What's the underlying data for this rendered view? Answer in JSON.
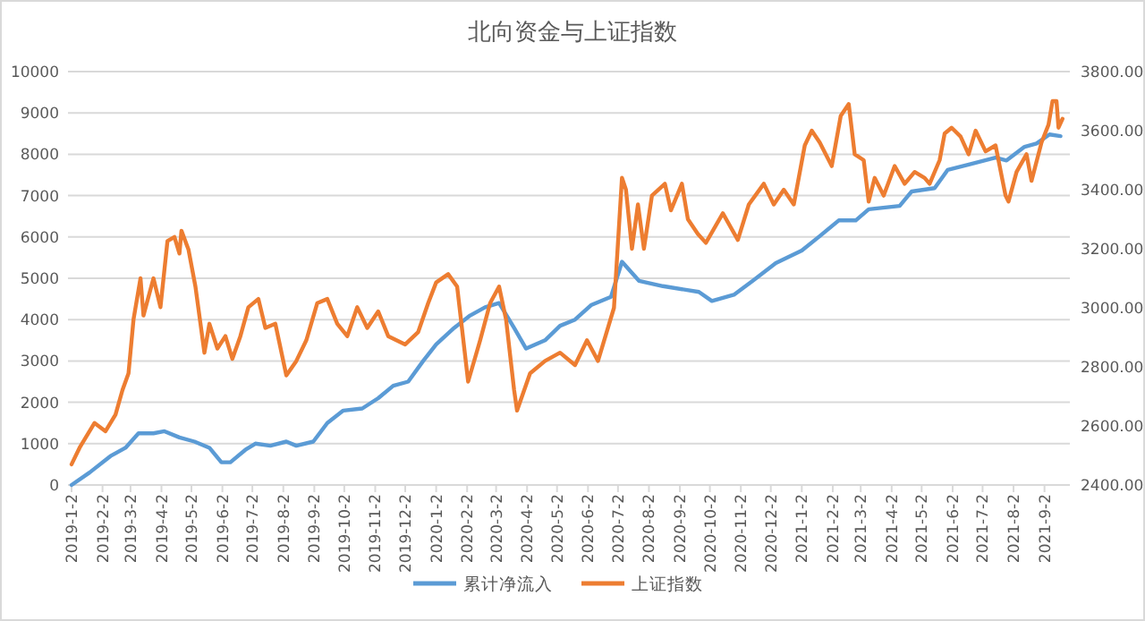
{
  "chart_data": {
    "type": "line",
    "title": "北向资金与上证指数",
    "x": [
      "2019-01-02",
      "2019-01-20",
      "2019-02-10",
      "2019-02-25",
      "2019-03-10",
      "2019-03-25",
      "2019-04-05",
      "2019-04-20",
      "2019-05-05",
      "2019-05-20",
      "2019-06-01",
      "2019-06-10",
      "2019-06-25",
      "2019-07-05",
      "2019-07-20",
      "2019-08-05",
      "2019-08-15",
      "2019-09-01",
      "2019-09-15",
      "2019-10-01",
      "2019-10-20",
      "2019-11-05",
      "2019-11-20",
      "2019-12-05",
      "2019-12-20",
      "2020-01-02",
      "2020-01-20",
      "2020-02-05",
      "2020-02-20",
      "2020-03-05",
      "2020-03-20",
      "2020-04-01",
      "2020-04-20",
      "2020-05-05",
      "2020-05-20",
      "2020-06-05",
      "2020-06-25",
      "2020-07-06",
      "2020-07-23",
      "2020-08-16",
      "2020-09-21",
      "2020-10-04",
      "2020-10-26",
      "2020-11-14",
      "2020-12-07",
      "2021-01-02",
      "2021-01-20",
      "2021-02-08",
      "2021-02-25",
      "2021-03-10",
      "2021-04-10",
      "2021-04-22",
      "2021-05-15",
      "2021-05-28",
      "2021-06-20",
      "2021-07-15",
      "2021-07-26",
      "2021-08-13",
      "2021-08-25",
      "2021-09-07",
      "2021-09-18"
    ],
    "series": [
      {
        "name": "累计净流入",
        "color": "#5b9bd5",
        "values": [
          0,
          300,
          700,
          900,
          1250,
          1250,
          1300,
          1150,
          1050,
          900,
          550,
          550,
          850,
          1000,
          950,
          1050,
          950,
          1050,
          1500,
          1800,
          1850,
          2100,
          2400,
          2500,
          3000,
          3400,
          3800,
          4100,
          4300,
          4400,
          3800,
          3300,
          3500,
          3850,
          4000,
          4350,
          4550,
          5400,
          4940,
          4810,
          4670,
          4450,
          4600,
          4940,
          5370,
          5670,
          6020,
          6400,
          6400,
          6670,
          6750,
          7100,
          7180,
          7620,
          7760,
          7920,
          7850,
          8180,
          8260,
          8480,
          8440
        ]
      },
      {
        "name": "上证指数",
        "color": "#ed7d31",
        "axis": "y2",
        "x": [
          "2019-01-02",
          "2019-01-10",
          "2019-01-25",
          "2019-02-05",
          "2019-02-15",
          "2019-02-22",
          "2019-02-28",
          "2019-03-05",
          "2019-03-12",
          "2019-03-15",
          "2019-03-25",
          "2019-04-01",
          "2019-04-08",
          "2019-04-15",
          "2019-04-20",
          "2019-04-22",
          "2019-04-29",
          "2019-05-06",
          "2019-05-15",
          "2019-05-20",
          "2019-05-28",
          "2019-06-05",
          "2019-06-12",
          "2019-06-20",
          "2019-06-28",
          "2019-07-08",
          "2019-07-15",
          "2019-07-25",
          "2019-08-05",
          "2019-08-15",
          "2019-08-25",
          "2019-09-05",
          "2019-09-15",
          "2019-09-25",
          "2019-10-05",
          "2019-10-15",
          "2019-10-25",
          "2019-11-05",
          "2019-11-15",
          "2019-12-02",
          "2019-12-15",
          "2019-12-25",
          "2020-01-02",
          "2020-01-14",
          "2020-01-23",
          "2020-02-03",
          "2020-02-15",
          "2020-02-25",
          "2020-03-05",
          "2020-03-12",
          "2020-03-20",
          "2020-03-23",
          "2020-04-05",
          "2020-04-20",
          "2020-05-05",
          "2020-05-20",
          "2020-06-01",
          "2020-06-12",
          "2020-06-28",
          "2020-07-06",
          "2020-07-10",
          "2020-07-16",
          "2020-07-22",
          "2020-07-28",
          "2020-08-05",
          "2020-08-18",
          "2020-08-24",
          "2020-09-04",
          "2020-09-10",
          "2020-09-20",
          "2020-09-28",
          "2020-10-15",
          "2020-10-30",
          "2020-11-10",
          "2020-11-25",
          "2020-12-05",
          "2020-12-15",
          "2020-12-25",
          "2021-01-05",
          "2021-01-12",
          "2021-01-20",
          "2021-02-01",
          "2021-02-10",
          "2021-02-18",
          "2021-02-24",
          "2021-03-05",
          "2021-03-10",
          "2021-03-16",
          "2021-03-25",
          "2021-04-05",
          "2021-04-15",
          "2021-04-25",
          "2021-05-05",
          "2021-05-10",
          "2021-05-20",
          "2021-05-25",
          "2021-06-01",
          "2021-06-10",
          "2021-06-18",
          "2021-06-25",
          "2021-07-05",
          "2021-07-15",
          "2021-07-25",
          "2021-07-28",
          "2021-08-05",
          "2021-08-15",
          "2021-08-20",
          "2021-08-30",
          "2021-09-06",
          "2021-09-10",
          "2021-09-14",
          "2021-09-16",
          "2021-09-20"
        ],
        "values": [
          2470,
          2526,
          2610,
          2582,
          2638,
          2722,
          2778,
          2960,
          3100,
          2974,
          3100,
          3002,
          3226,
          3240,
          3184,
          3261,
          3198,
          3072,
          2848,
          2946,
          2862,
          2904,
          2827,
          2904,
          3002,
          3030,
          2932,
          2946,
          2771,
          2820,
          2890,
          3016,
          3030,
          2946,
          2904,
          3002,
          2932,
          2988,
          2904,
          2876,
          2918,
          3016,
          3086,
          3114,
          3072,
          2750,
          2890,
          3016,
          3072,
          2960,
          2722,
          2652,
          2778,
          2820,
          2848,
          2806,
          2890,
          2820,
          3000,
          3440,
          3400,
          3200,
          3350,
          3200,
          3380,
          3420,
          3330,
          3420,
          3300,
          3250,
          3220,
          3320,
          3230,
          3350,
          3420,
          3350,
          3400,
          3350,
          3550,
          3600,
          3560,
          3480,
          3650,
          3690,
          3520,
          3500,
          3360,
          3440,
          3380,
          3480,
          3420,
          3460,
          3440,
          3420,
          3500,
          3590,
          3610,
          3580,
          3520,
          3600,
          3530,
          3550,
          3380,
          3360,
          3460,
          3520,
          3430,
          3560,
          3620,
          3700,
          3700,
          3610,
          3640
        ]
      }
    ],
    "xlim": [
      "2019-01-02",
      "2021-09-22"
    ],
    "xticks": [
      {
        "value": "2019-01-02",
        "label": "2019-1-2"
      },
      {
        "value": "2019-02-02",
        "label": "2019-2-2"
      },
      {
        "value": "2019-03-02",
        "label": "2019-3-2"
      },
      {
        "value": "2019-04-02",
        "label": "2019-4-2"
      },
      {
        "value": "2019-05-02",
        "label": "2019-5-2"
      },
      {
        "value": "2019-06-02",
        "label": "2019-6-2"
      },
      {
        "value": "2019-07-02",
        "label": "2019-7-2"
      },
      {
        "value": "2019-08-02",
        "label": "2019-8-2"
      },
      {
        "value": "2019-09-02",
        "label": "2019-9-2"
      },
      {
        "value": "2019-10-02",
        "label": "2019-10-2"
      },
      {
        "value": "2019-11-02",
        "label": "2019-11-2"
      },
      {
        "value": "2019-12-02",
        "label": "2019-12-2"
      },
      {
        "value": "2020-01-02",
        "label": "2020-1-2"
      },
      {
        "value": "2020-02-02",
        "label": "2020-2-2"
      },
      {
        "value": "2020-03-02",
        "label": "2020-3-2"
      },
      {
        "value": "2020-04-02",
        "label": "2020-4-2"
      },
      {
        "value": "2020-05-02",
        "label": "2020-5-2"
      },
      {
        "value": "2020-06-02",
        "label": "2020-6-2"
      },
      {
        "value": "2020-07-02",
        "label": "2020-7-2"
      },
      {
        "value": "2020-08-02",
        "label": "2020-8-2"
      },
      {
        "value": "2020-09-02",
        "label": "2020-9-2"
      },
      {
        "value": "2020-10-02",
        "label": "2020-10-2"
      },
      {
        "value": "2020-11-02",
        "label": "2020-11-2"
      },
      {
        "value": "2020-12-02",
        "label": "2020-12-2"
      },
      {
        "value": "2021-01-02",
        "label": "2021-1-2"
      },
      {
        "value": "2021-02-02",
        "label": "2021-2-2"
      },
      {
        "value": "2021-03-02",
        "label": "2021-3-2"
      },
      {
        "value": "2021-04-02",
        "label": "2021-4-2"
      },
      {
        "value": "2021-05-02",
        "label": "2021-5-2"
      },
      {
        "value": "2021-06-02",
        "label": "2021-6-2"
      },
      {
        "value": "2021-07-02",
        "label": "2021-7-2"
      },
      {
        "value": "2021-08-02",
        "label": "2021-8-2"
      },
      {
        "value": "2021-09-02",
        "label": "2021-9-2"
      }
    ],
    "ylim": [
      0,
      10000
    ],
    "yticks": [
      0,
      1000,
      2000,
      3000,
      4000,
      5000,
      6000,
      7000,
      8000,
      9000,
      10000
    ],
    "y2lim": [
      2400,
      3800
    ],
    "y2ticks": [
      {
        "value": 2400,
        "label": "2400.00"
      },
      {
        "value": 2600,
        "label": "2600.00"
      },
      {
        "value": 2800,
        "label": "2800.00"
      },
      {
        "value": 3000,
        "label": "3000.00"
      },
      {
        "value": 3200,
        "label": "3200.00"
      },
      {
        "value": 3400,
        "label": "3400.00"
      },
      {
        "value": 3600,
        "label": "3600.00"
      },
      {
        "value": 3800,
        "label": "3800.00"
      }
    ],
    "grid": "y",
    "legend": "bottom",
    "marker": "none",
    "line_style": "solid"
  }
}
